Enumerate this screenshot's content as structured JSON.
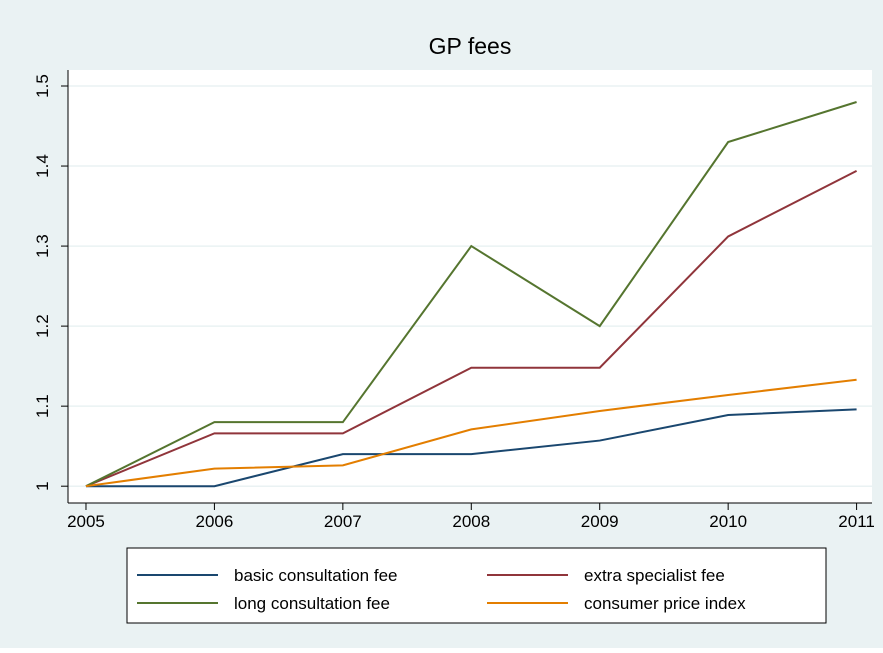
{
  "chart_data": {
    "type": "line",
    "title": "GP fees",
    "x": [
      2005,
      2006,
      2007,
      2008,
      2009,
      2010,
      2011
    ],
    "series": [
      {
        "name": "basic consultation fee",
        "color": "#1a476f",
        "values": [
          1.0,
          1.0,
          1.04,
          1.04,
          1.057,
          1.089,
          1.096
        ]
      },
      {
        "name": "extra specialist fee",
        "color": "#90353b",
        "values": [
          1.0,
          1.066,
          1.066,
          1.148,
          1.148,
          1.312,
          1.394
        ]
      },
      {
        "name": "long consultation fee",
        "color": "#55752f",
        "values": [
          1.0,
          1.08,
          1.08,
          1.3,
          1.2,
          1.43,
          1.48
        ]
      },
      {
        "name": "consumer price index",
        "color": "#e37e00",
        "values": [
          1.0,
          1.022,
          1.026,
          1.071,
          1.094,
          1.114,
          1.133
        ]
      }
    ],
    "xlim": [
      2004.86,
      2011.12
    ],
    "ylim": [
      0.979,
      1.52
    ],
    "xticks": [
      2005,
      2006,
      2007,
      2008,
      2009,
      2010,
      2011
    ],
    "yticks": [
      1,
      1.1,
      1.2,
      1.3,
      1.4,
      1.5
    ],
    "grid": true
  }
}
